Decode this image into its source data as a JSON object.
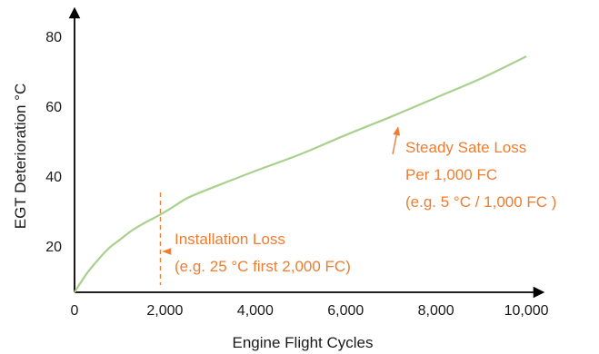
{
  "chart_data": {
    "type": "line",
    "xlabel": "Engine Flight Cycles",
    "ylabel": "EGT Deterioration °C",
    "xlim": [
      0,
      10300
    ],
    "ylim": [
      7,
      87
    ],
    "x_ticks": [
      {
        "value": 0,
        "label": "0"
      },
      {
        "value": 2000,
        "label": "2,000"
      },
      {
        "value": 4000,
        "label": "4,000"
      },
      {
        "value": 6000,
        "label": "6,000"
      },
      {
        "value": 8000,
        "label": "8,000"
      },
      {
        "value": 10000,
        "label": "10,000"
      }
    ],
    "y_ticks": [
      {
        "value": 20,
        "label": "20"
      },
      {
        "value": 40,
        "label": "40"
      },
      {
        "value": 60,
        "label": "60"
      },
      {
        "value": 80,
        "label": "80"
      }
    ],
    "grid": false,
    "series": [
      {
        "color": "#a9d18e",
        "x": [
          0,
          250,
          500,
          750,
          1000,
          1250,
          1500,
          1750,
          2000,
          2250,
          2500,
          3000,
          4000,
          5000,
          6000,
          7000,
          8000,
          9000,
          10000
        ],
        "y": [
          7,
          12,
          16,
          19.5,
          22,
          24.5,
          26.5,
          28.2,
          30,
          32,
          34,
          36.7,
          41.7,
          46.5,
          52,
          57.2,
          62.7,
          68.2,
          74.5
        ]
      }
    ],
    "annotations": [
      {
        "id": "installation",
        "lines": [
          "Installation Loss",
          "(e.g. 25 °C first 2,000 FC)"
        ],
        "color": "#ed7d31",
        "marker_x": 1900
      },
      {
        "id": "steady",
        "lines": [
          "Steady Sate Loss",
          "Per 1,000 FC",
          "(e.g. 5 °C / 1,000 FC )"
        ],
        "color": "#ed7d31",
        "arrow_to": {
          "x": 7100,
          "y": 55
        }
      }
    ]
  }
}
